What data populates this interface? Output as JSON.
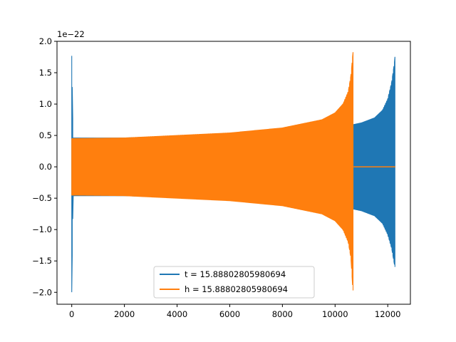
{
  "chart_data": {
    "type": "line",
    "title": "",
    "xlabel": "",
    "ylabel": "",
    "y_offset_label": "1e−22",
    "xlim": [
      -560,
      12860
    ],
    "ylim": [
      -2.19,
      2.0
    ],
    "x_ticks": [
      0,
      2000,
      4000,
      6000,
      8000,
      10000,
      12000
    ],
    "x_tick_labels": [
      "0",
      "2000",
      "4000",
      "6000",
      "8000",
      "10000",
      "12000"
    ],
    "y_ticks": [
      -2.0,
      -1.5,
      -1.0,
      -0.5,
      0.0,
      0.5,
      1.0,
      1.5,
      2.0
    ],
    "y_tick_labels": [
      "−2.0",
      "−1.5",
      "−1.0",
      "−0.5",
      "0.0",
      "0.5",
      "1.0",
      "1.5",
      "2.0"
    ],
    "grid": false,
    "legend_position": "bottom-center",
    "series": [
      {
        "name": "t = 15.88802805980694",
        "color": "#1f77b4",
        "envelope": {
          "x": [
            0,
            50,
            2000,
            4000,
            6000,
            8000,
            10000,
            11000,
            11500,
            11800,
            12000,
            12150,
            12250,
            12290
          ],
          "upper": [
            1.77,
            0.46,
            0.46,
            0.49,
            0.51,
            0.55,
            0.61,
            0.7,
            0.78,
            0.9,
            1.08,
            1.35,
            1.65,
            1.83
          ],
          "lower": [
            -2.0,
            -0.46,
            -0.46,
            -0.49,
            -0.51,
            -0.55,
            -0.61,
            -0.7,
            -0.78,
            -0.9,
            -1.08,
            -1.3,
            -1.55,
            -1.63
          ]
        }
      },
      {
        "name": "h = 15.88802805980694",
        "color": "#ff7f0e",
        "envelope": {
          "x": [
            0,
            2000,
            4000,
            6000,
            8000,
            9500,
            10000,
            10300,
            10500,
            10600,
            10680,
            10700
          ],
          "upper": [
            0.45,
            0.46,
            0.5,
            0.54,
            0.62,
            0.75,
            0.86,
            1.0,
            1.2,
            1.45,
            1.83,
            1.8
          ],
          "lower": [
            -0.45,
            -0.46,
            -0.5,
            -0.54,
            -0.62,
            -0.75,
            -0.86,
            -1.0,
            -1.2,
            -1.45,
            -2.0,
            -1.7
          ]
        },
        "flat_segment": {
          "x": [
            10700,
            12290
          ],
          "y": 0.0
        }
      }
    ]
  }
}
